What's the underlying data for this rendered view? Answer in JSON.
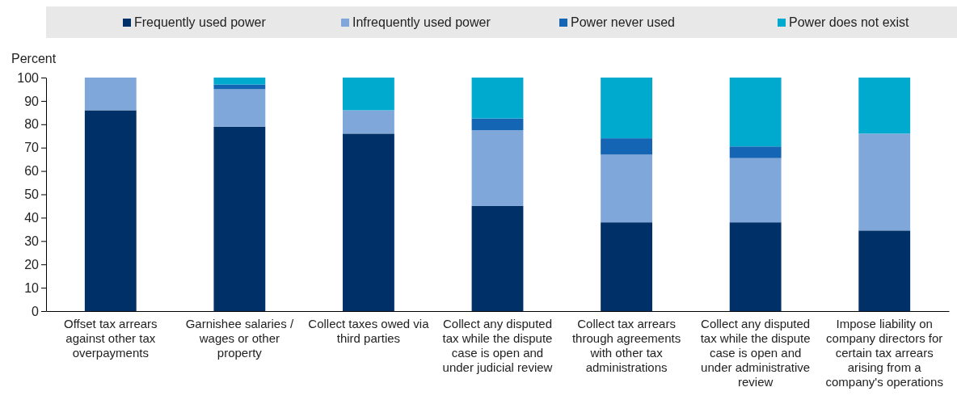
{
  "chart_data": {
    "type": "bar",
    "stacked": true,
    "ylabel": "Percent",
    "ylim": [
      0,
      100
    ],
    "yticks": [
      0,
      10,
      20,
      30,
      40,
      50,
      60,
      70,
      80,
      90,
      100
    ],
    "legend": "top",
    "categories": [
      "Offset tax arrears against other tax overpayments",
      "Garnishee salaries / wages or other property",
      "Collect taxes owed via third parties",
      "Collect any disputed tax while the dispute case is open and under judicial review",
      "Collect tax arrears through agreements with other tax administrations",
      "Collect any disputed tax while the dispute case is open and under administrative review",
      "Impose liability on company directors for certain tax arrears arising from a company's operations"
    ],
    "series": [
      {
        "name": "Frequently used power",
        "color": "#003068",
        "values": [
          86,
          79,
          76,
          45,
          38,
          38,
          34.5
        ]
      },
      {
        "name": "Infrequently used power",
        "color": "#7fa7da",
        "values": [
          14,
          16,
          10,
          32.5,
          29,
          27.5,
          41.5
        ]
      },
      {
        "name": "Power never used",
        "color": "#1565b5",
        "values": [
          0,
          2,
          0,
          5,
          7,
          5,
          0
        ]
      },
      {
        "name": "Power does not exist",
        "color": "#00a9ce",
        "values": [
          0,
          3,
          14,
          17.5,
          26,
          29.5,
          24
        ]
      }
    ]
  }
}
